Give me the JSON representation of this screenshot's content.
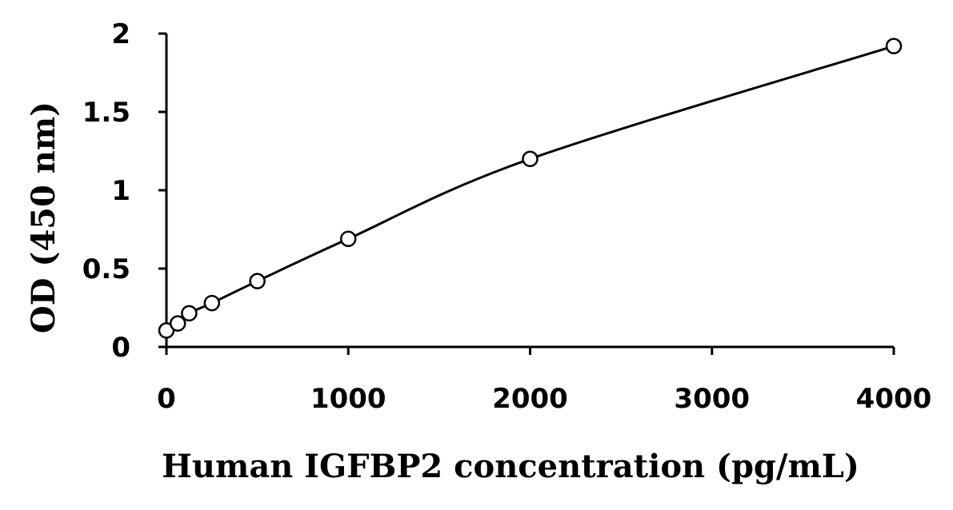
{
  "chart_data": {
    "type": "scatter",
    "title": "",
    "xlabel": "Human IGFBP2 concentration (pg/mL)",
    "ylabel": "OD (450 nm)",
    "xlim": [
      0,
      4000
    ],
    "ylim": [
      0,
      2
    ],
    "x_ticks": [
      0,
      1000,
      2000,
      3000,
      4000
    ],
    "y_ticks": [
      0,
      0.5,
      1,
      1.5,
      2
    ],
    "y_tick_labels": [
      "0",
      "0.5",
      "1",
      "1.5",
      "2"
    ],
    "x_tick_labels": [
      "0",
      "1000",
      "2000",
      "3000",
      "4000"
    ],
    "grid": false,
    "marker": "open-circle",
    "fit_line": "smooth",
    "series": [
      {
        "x": [
          0,
          62.5,
          125,
          250,
          500,
          1000,
          2000,
          4000
        ],
        "y": [
          0.105,
          0.15,
          0.215,
          0.28,
          0.42,
          0.69,
          1.2,
          1.92
        ]
      }
    ]
  }
}
